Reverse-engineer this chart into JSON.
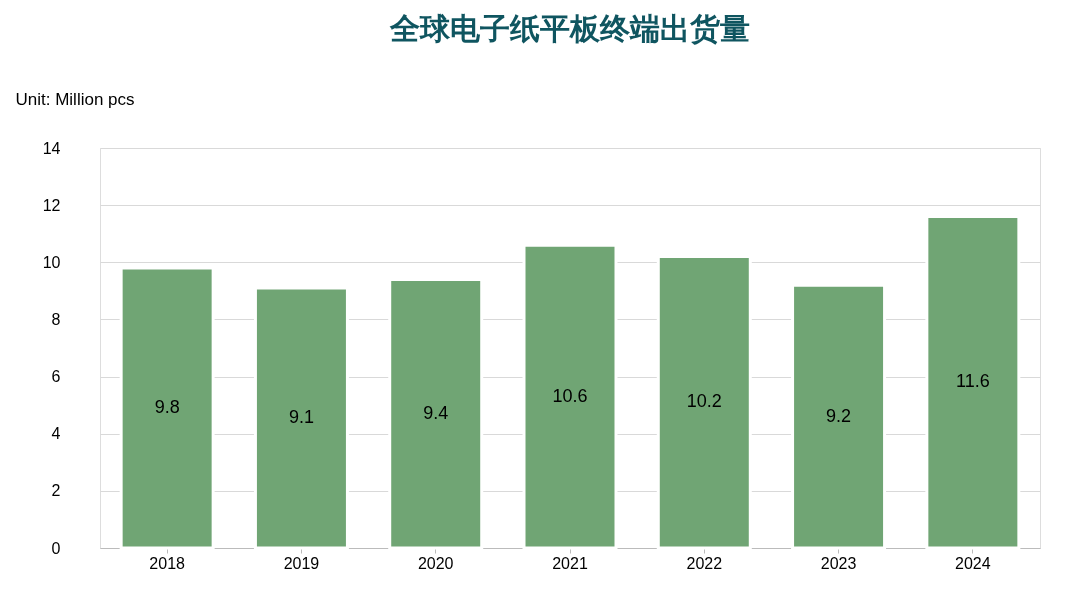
{
  "chart_data": {
    "type": "bar",
    "title": "全球电子纸平板终端出货量",
    "ylabel": "Unit: Million pcs",
    "categories": [
      "2018",
      "2019",
      "2020",
      "2021",
      "2022",
      "2023",
      "2024"
    ],
    "values": [
      9.8,
      9.1,
      9.4,
      10.6,
      10.2,
      9.2,
      11.6
    ],
    "color": "#70a574",
    "ylim": [
      0,
      14
    ],
    "yticks": [
      0,
      2,
      4,
      6,
      8,
      10,
      12,
      14
    ],
    "grid": "y",
    "data_labels": true
  }
}
